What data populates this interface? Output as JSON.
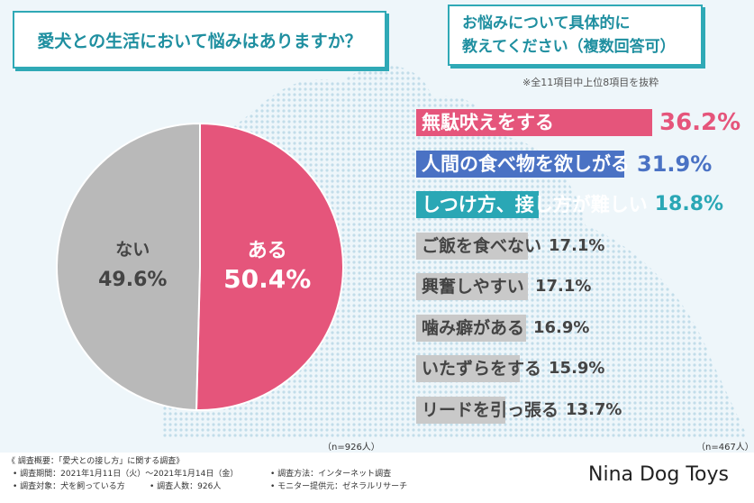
{
  "question1": "愛犬との生活において悩みはありますか？",
  "question2": {
    "line1": "お悩みについて具体的に",
    "line2": "教えてください（複数回答可）"
  },
  "note": "※全11項目中上位8項目を抜粋",
  "colors": {
    "pink": "#e5557b",
    "gray": "#b9b9b9",
    "blue": "#4a72c4",
    "teal": "#2aa7b5",
    "light": "#c9c9c9",
    "dark": "#444444"
  },
  "chart_data": [
    {
      "type": "pie",
      "title": "愛犬との生活において悩みはありますか？",
      "categories": [
        "ある",
        "ない"
      ],
      "values": [
        50.4,
        49.6
      ],
      "labels": [
        "50.4%",
        "49.6%"
      ],
      "n": "（n=926人）"
    },
    {
      "type": "bar",
      "title": "お悩みについて具体的に教えてください（複数回答可）",
      "categories": [
        "無駄吠えをする",
        "人間の食べ物を欲しがる",
        "しつけ方、接し方が難しい",
        "ご飯を食べない",
        "興奮しやすい",
        "噛み癖がある",
        "いたずらをする",
        "リードを引っ張る"
      ],
      "values": [
        36.2,
        31.9,
        18.8,
        17.1,
        17.1,
        16.9,
        15.9,
        13.7
      ],
      "labels": [
        "36.2%",
        "31.9%",
        "18.8%",
        "17.1%",
        "17.1%",
        "16.9%",
        "15.9%",
        "13.7%"
      ],
      "n": "（n=467人）"
    }
  ],
  "footer": {
    "summary": "《 調査概要：「愛犬との接し方」に関する調査》",
    "period": "• 調査期間：2021年1月11日（火）〜2021年1月14日（金）",
    "method": "• 調査方法：インターネット調査",
    "target": "• 調査対象：犬を飼っている方",
    "count": "• 調査人数：926人",
    "monitor": "• モニター提供元：ゼネラルリサーチ"
  },
  "brand": "Nina Dog Toys"
}
